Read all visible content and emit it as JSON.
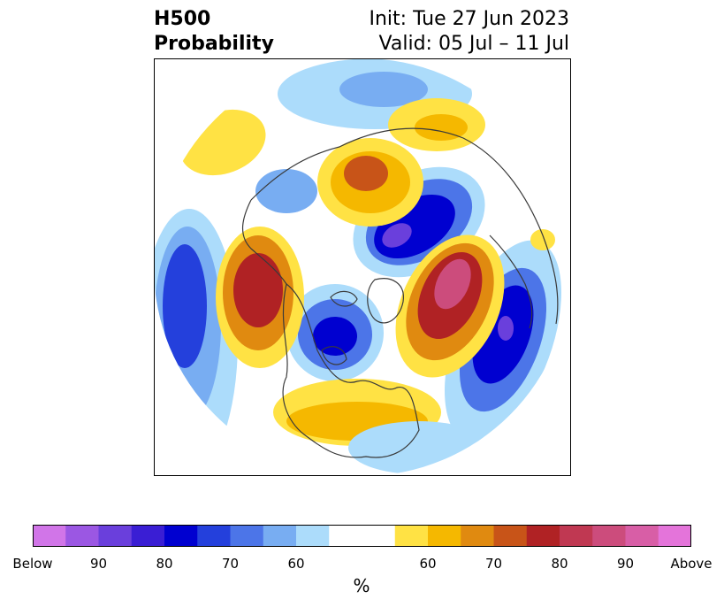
{
  "title": {
    "left_line1": "H500",
    "left_line2": "Probability",
    "right_line1": "Init: Tue 27 Jun 2023",
    "right_line2": "Valid: 05 Jul – 11 Jul"
  },
  "colorbar": {
    "unit": "%",
    "tick_labels": [
      "Below",
      "90",
      "80",
      "70",
      "60",
      "60",
      "70",
      "80",
      "90",
      "Above"
    ],
    "colors": [
      "#d175e8",
      "#9b57e3",
      "#6a3fdc",
      "#3a1ed4",
      "#0000d0",
      "#2440dc",
      "#4c75e8",
      "#78adf2",
      "#acdcfb",
      "#ffffff",
      "#ffe244",
      "#f5b800",
      "#e08a10",
      "#c85418",
      "#b02224",
      "#c03852",
      "#cc4c7c",
      "#d85ea6",
      "#e474da"
    ]
  },
  "map_colors": {
    "below_light": "#acdcfb",
    "below_mid": "#78adf2",
    "below_mid2": "#4c75e8",
    "below_strong": "#2440dc",
    "below_deep": "#0000d0",
    "below_core": "#6a3fdc",
    "above_light": "#ffe244",
    "above_mid": "#f5b800",
    "above_mid2": "#e08a10",
    "above_strong": "#c85418",
    "above_deep": "#b02224",
    "above_core": "#cc4c7c",
    "coast": "#3a3a3a"
  }
}
